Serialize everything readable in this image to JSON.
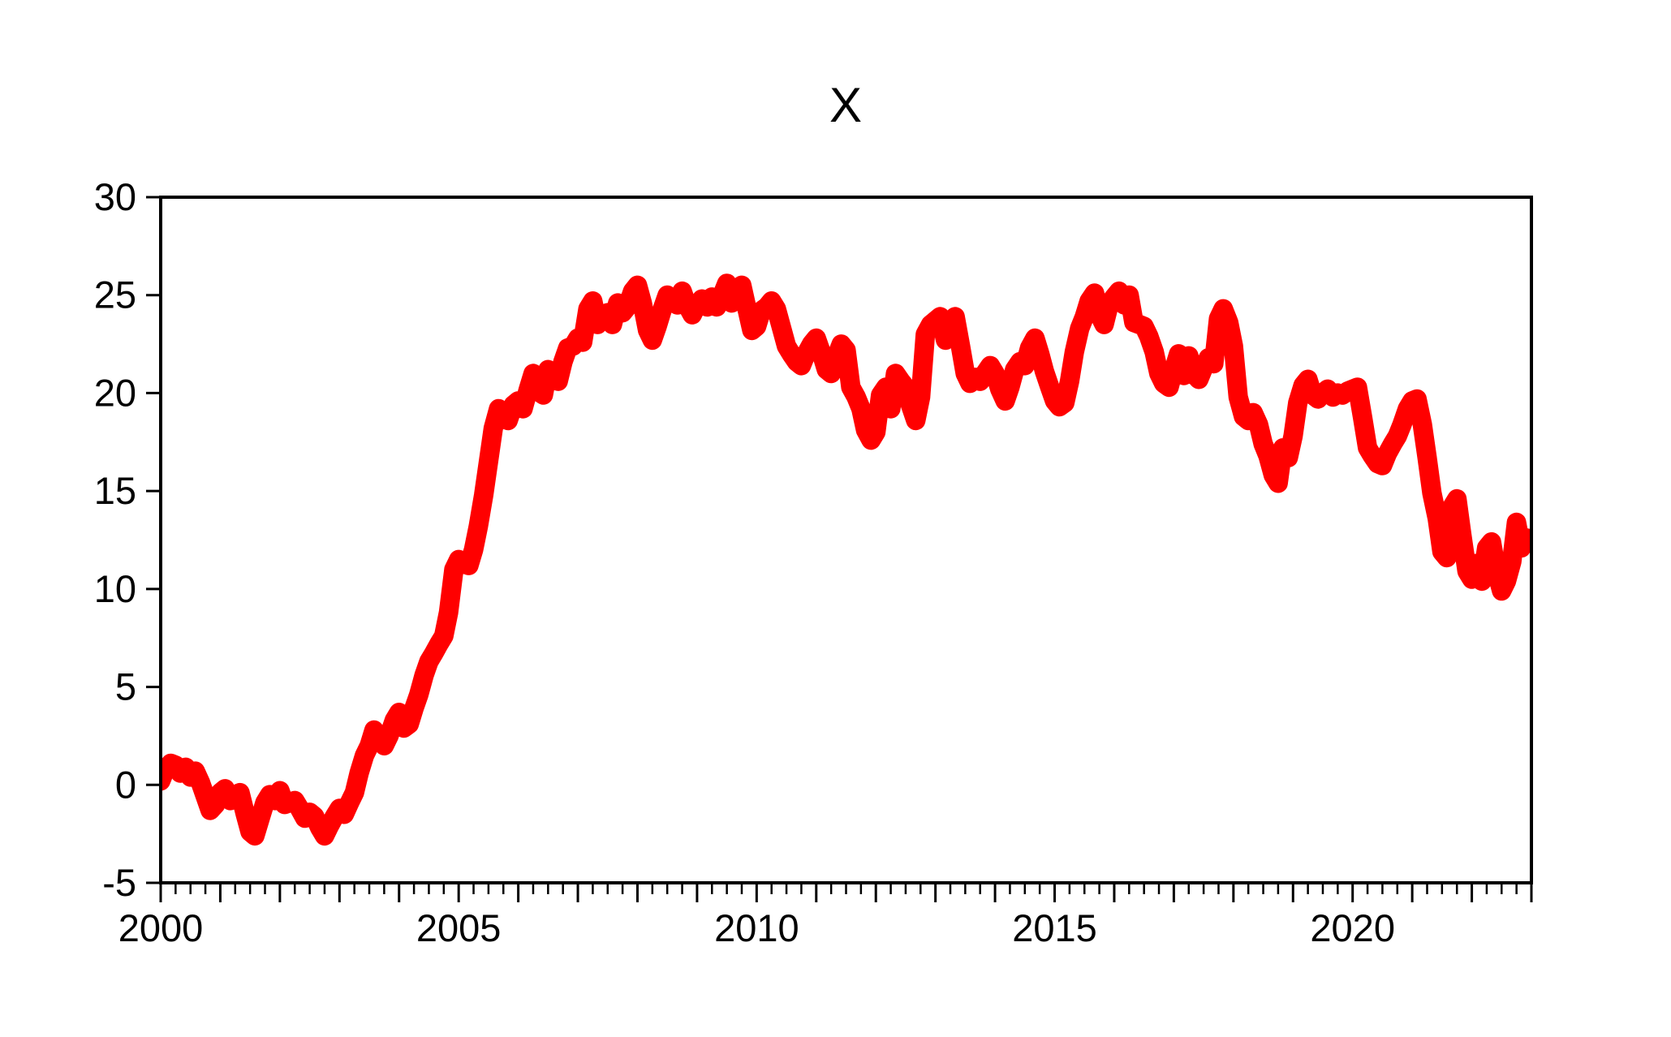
{
  "chart_data": {
    "type": "line",
    "title": "X",
    "series_name": "X",
    "legend": "none",
    "grid": false,
    "background_color": "#ffffff",
    "axis_color": "#000000",
    "line_color": "#ff0000",
    "line_width": 24,
    "x_range": [
      2000,
      2023
    ],
    "y_range": [
      -5,
      30
    ],
    "y_ticks": [
      30,
      25,
      20,
      15,
      10,
      5,
      0,
      -5
    ],
    "x_label_ticks": [
      2000,
      2005,
      2010,
      2015,
      2020
    ],
    "x_major_tick_step": 1,
    "x_minor_tick_step": 0.25,
    "points": [
      [
        2000.0,
        0.2
      ],
      [
        2000.08,
        0.8
      ],
      [
        2000.17,
        1.1
      ],
      [
        2000.25,
        1.0
      ],
      [
        2000.33,
        0.6
      ],
      [
        2000.42,
        0.9
      ],
      [
        2000.5,
        0.4
      ],
      [
        2000.58,
        0.7
      ],
      [
        2000.67,
        0.1
      ],
      [
        2000.75,
        -0.6
      ],
      [
        2000.83,
        -1.3
      ],
      [
        2000.92,
        -1.0
      ],
      [
        2001.0,
        -0.4
      ],
      [
        2001.08,
        -0.2
      ],
      [
        2001.17,
        -0.8
      ],
      [
        2001.25,
        -0.5
      ],
      [
        2001.33,
        -0.4
      ],
      [
        2001.42,
        -1.5
      ],
      [
        2001.5,
        -2.4
      ],
      [
        2001.58,
        -2.6
      ],
      [
        2001.67,
        -1.7
      ],
      [
        2001.75,
        -0.9
      ],
      [
        2001.83,
        -0.5
      ],
      [
        2001.92,
        -0.8
      ],
      [
        2002.0,
        -0.3
      ],
      [
        2002.08,
        -1.0
      ],
      [
        2002.17,
        -0.9
      ],
      [
        2002.25,
        -0.8
      ],
      [
        2002.33,
        -1.2
      ],
      [
        2002.42,
        -1.7
      ],
      [
        2002.5,
        -1.4
      ],
      [
        2002.58,
        -1.6
      ],
      [
        2002.67,
        -2.2
      ],
      [
        2002.75,
        -2.6
      ],
      [
        2002.83,
        -2.1
      ],
      [
        2002.92,
        -1.6
      ],
      [
        2003.0,
        -1.2
      ],
      [
        2003.08,
        -1.5
      ],
      [
        2003.17,
        -0.9
      ],
      [
        2003.25,
        -0.4
      ],
      [
        2003.33,
        0.6
      ],
      [
        2003.42,
        1.5
      ],
      [
        2003.5,
        2.0
      ],
      [
        2003.58,
        2.8
      ],
      [
        2003.67,
        2.4
      ],
      [
        2003.75,
        2.0
      ],
      [
        2003.83,
        2.5
      ],
      [
        2003.92,
        3.3
      ],
      [
        2004.0,
        3.7
      ],
      [
        2004.08,
        2.9
      ],
      [
        2004.17,
        3.1
      ],
      [
        2004.25,
        3.9
      ],
      [
        2004.33,
        4.6
      ],
      [
        2004.42,
        5.6
      ],
      [
        2004.5,
        6.3
      ],
      [
        2004.58,
        6.7
      ],
      [
        2004.67,
        7.2
      ],
      [
        2004.75,
        7.6
      ],
      [
        2004.83,
        8.8
      ],
      [
        2004.92,
        11.0
      ],
      [
        2005.0,
        11.5
      ],
      [
        2005.08,
        11.3
      ],
      [
        2005.17,
        11.2
      ],
      [
        2005.25,
        12.0
      ],
      [
        2005.33,
        13.2
      ],
      [
        2005.42,
        14.8
      ],
      [
        2005.5,
        16.5
      ],
      [
        2005.58,
        18.2
      ],
      [
        2005.67,
        19.2
      ],
      [
        2005.75,
        19.0
      ],
      [
        2005.83,
        18.6
      ],
      [
        2005.92,
        19.4
      ],
      [
        2006.0,
        19.6
      ],
      [
        2006.08,
        19.2
      ],
      [
        2006.17,
        20.2
      ],
      [
        2006.25,
        21.0
      ],
      [
        2006.33,
        20.1
      ],
      [
        2006.42,
        19.9
      ],
      [
        2006.5,
        21.2
      ],
      [
        2006.58,
        20.7
      ],
      [
        2006.67,
        20.6
      ],
      [
        2006.75,
        21.6
      ],
      [
        2006.83,
        22.3
      ],
      [
        2006.92,
        22.4
      ],
      [
        2007.0,
        22.8
      ],
      [
        2007.08,
        22.6
      ],
      [
        2007.17,
        24.3
      ],
      [
        2007.25,
        24.7
      ],
      [
        2007.33,
        23.5
      ],
      [
        2007.42,
        23.8
      ],
      [
        2007.5,
        24.1
      ],
      [
        2007.58,
        23.5
      ],
      [
        2007.67,
        24.6
      ],
      [
        2007.75,
        24.1
      ],
      [
        2007.83,
        24.4
      ],
      [
        2007.92,
        25.2
      ],
      [
        2008.0,
        25.5
      ],
      [
        2008.08,
        24.6
      ],
      [
        2008.17,
        23.2
      ],
      [
        2008.25,
        22.7
      ],
      [
        2008.33,
        23.4
      ],
      [
        2008.42,
        24.3
      ],
      [
        2008.5,
        25.0
      ],
      [
        2008.58,
        24.8
      ],
      [
        2008.67,
        24.5
      ],
      [
        2008.75,
        25.2
      ],
      [
        2008.83,
        24.5
      ],
      [
        2008.92,
        24.0
      ],
      [
        2009.0,
        24.5
      ],
      [
        2009.08,
        24.8
      ],
      [
        2009.17,
        24.4
      ],
      [
        2009.25,
        24.9
      ],
      [
        2009.33,
        24.4
      ],
      [
        2009.42,
        25.0
      ],
      [
        2009.5,
        25.6
      ],
      [
        2009.58,
        24.6
      ],
      [
        2009.67,
        25.2
      ],
      [
        2009.75,
        25.5
      ],
      [
        2009.83,
        24.4
      ],
      [
        2009.92,
        23.2
      ],
      [
        2010.0,
        23.4
      ],
      [
        2010.08,
        24.2
      ],
      [
        2010.17,
        24.4
      ],
      [
        2010.25,
        24.7
      ],
      [
        2010.33,
        24.3
      ],
      [
        2010.42,
        23.3
      ],
      [
        2010.5,
        22.4
      ],
      [
        2010.58,
        22.0
      ],
      [
        2010.67,
        21.6
      ],
      [
        2010.75,
        21.4
      ],
      [
        2010.83,
        22.0
      ],
      [
        2010.92,
        22.5
      ],
      [
        2011.0,
        22.8
      ],
      [
        2011.08,
        22.1
      ],
      [
        2011.17,
        21.2
      ],
      [
        2011.25,
        21.0
      ],
      [
        2011.33,
        21.8
      ],
      [
        2011.42,
        22.5
      ],
      [
        2011.5,
        22.2
      ],
      [
        2011.58,
        20.3
      ],
      [
        2011.67,
        19.8
      ],
      [
        2011.75,
        19.2
      ],
      [
        2011.83,
        18.1
      ],
      [
        2011.92,
        17.6
      ],
      [
        2012.0,
        18.0
      ],
      [
        2012.08,
        19.9
      ],
      [
        2012.17,
        20.3
      ],
      [
        2012.25,
        19.2
      ],
      [
        2012.33,
        21.0
      ],
      [
        2012.42,
        20.6
      ],
      [
        2012.5,
        20.3
      ],
      [
        2012.58,
        19.4
      ],
      [
        2012.67,
        18.6
      ],
      [
        2012.75,
        19.8
      ],
      [
        2012.83,
        23.0
      ],
      [
        2012.92,
        23.5
      ],
      [
        2013.0,
        23.7
      ],
      [
        2013.08,
        23.9
      ],
      [
        2013.17,
        22.7
      ],
      [
        2013.25,
        23.6
      ],
      [
        2013.33,
        23.9
      ],
      [
        2013.42,
        22.4
      ],
      [
        2013.5,
        21.0
      ],
      [
        2013.58,
        20.5
      ],
      [
        2013.67,
        20.8
      ],
      [
        2013.75,
        20.6
      ],
      [
        2013.83,
        21.0
      ],
      [
        2013.92,
        21.4
      ],
      [
        2014.0,
        21.0
      ],
      [
        2014.08,
        20.2
      ],
      [
        2014.17,
        19.6
      ],
      [
        2014.25,
        20.3
      ],
      [
        2014.33,
        21.2
      ],
      [
        2014.42,
        21.6
      ],
      [
        2014.5,
        21.4
      ],
      [
        2014.58,
        22.3
      ],
      [
        2014.67,
        22.8
      ],
      [
        2014.75,
        22.0
      ],
      [
        2014.83,
        21.1
      ],
      [
        2014.92,
        20.3
      ],
      [
        2015.0,
        19.6
      ],
      [
        2015.08,
        19.3
      ],
      [
        2015.17,
        19.5
      ],
      [
        2015.25,
        20.6
      ],
      [
        2015.33,
        22.1
      ],
      [
        2015.42,
        23.3
      ],
      [
        2015.5,
        23.9
      ],
      [
        2015.58,
        24.7
      ],
      [
        2015.67,
        25.1
      ],
      [
        2015.75,
        24.0
      ],
      [
        2015.83,
        23.5
      ],
      [
        2015.92,
        24.6
      ],
      [
        2016.0,
        24.9
      ],
      [
        2016.08,
        25.2
      ],
      [
        2016.17,
        24.5
      ],
      [
        2016.25,
        25.0
      ],
      [
        2016.33,
        23.6
      ],
      [
        2016.42,
        23.5
      ],
      [
        2016.5,
        23.4
      ],
      [
        2016.58,
        22.9
      ],
      [
        2016.67,
        22.1
      ],
      [
        2016.75,
        21.0
      ],
      [
        2016.83,
        20.5
      ],
      [
        2016.92,
        20.3
      ],
      [
        2017.0,
        21.2
      ],
      [
        2017.08,
        22.0
      ],
      [
        2017.17,
        20.9
      ],
      [
        2017.25,
        21.9
      ],
      [
        2017.33,
        21.0
      ],
      [
        2017.42,
        20.7
      ],
      [
        2017.5,
        21.3
      ],
      [
        2017.58,
        21.8
      ],
      [
        2017.67,
        21.5
      ],
      [
        2017.75,
        23.8
      ],
      [
        2017.83,
        24.3
      ],
      [
        2017.92,
        23.6
      ],
      [
        2018.0,
        22.4
      ],
      [
        2018.08,
        19.8
      ],
      [
        2018.17,
        18.8
      ],
      [
        2018.25,
        18.6
      ],
      [
        2018.33,
        19.0
      ],
      [
        2018.42,
        18.4
      ],
      [
        2018.5,
        17.4
      ],
      [
        2018.58,
        16.8
      ],
      [
        2018.67,
        15.8
      ],
      [
        2018.75,
        15.4
      ],
      [
        2018.83,
        17.2
      ],
      [
        2018.92,
        16.7
      ],
      [
        2019.0,
        17.8
      ],
      [
        2019.08,
        19.5
      ],
      [
        2019.17,
        20.4
      ],
      [
        2019.25,
        20.7
      ],
      [
        2019.33,
        19.9
      ],
      [
        2019.42,
        19.7
      ],
      [
        2019.5,
        20.0
      ],
      [
        2019.58,
        20.2
      ],
      [
        2019.67,
        19.8
      ],
      [
        2019.75,
        20.0
      ],
      [
        2019.83,
        19.9
      ],
      [
        2019.92,
        20.1
      ],
      [
        2020.0,
        20.2
      ],
      [
        2020.08,
        20.3
      ],
      [
        2020.17,
        18.7
      ],
      [
        2020.25,
        17.2
      ],
      [
        2020.33,
        16.8
      ],
      [
        2020.42,
        16.4
      ],
      [
        2020.5,
        16.3
      ],
      [
        2020.58,
        16.9
      ],
      [
        2020.67,
        17.4
      ],
      [
        2020.75,
        17.8
      ],
      [
        2020.83,
        18.4
      ],
      [
        2020.92,
        19.2
      ],
      [
        2021.0,
        19.6
      ],
      [
        2021.08,
        19.7
      ],
      [
        2021.17,
        18.4
      ],
      [
        2021.25,
        16.7
      ],
      [
        2021.33,
        14.9
      ],
      [
        2021.42,
        13.6
      ],
      [
        2021.5,
        11.9
      ],
      [
        2021.58,
        11.6
      ],
      [
        2021.67,
        14.2
      ],
      [
        2021.75,
        14.6
      ],
      [
        2021.83,
        12.8
      ],
      [
        2021.92,
        10.9
      ],
      [
        2022.0,
        10.5
      ],
      [
        2022.08,
        11.3
      ],
      [
        2022.17,
        10.4
      ],
      [
        2022.25,
        12.1
      ],
      [
        2022.33,
        12.4
      ],
      [
        2022.42,
        10.8
      ],
      [
        2022.5,
        9.9
      ],
      [
        2022.58,
        10.4
      ],
      [
        2022.67,
        11.4
      ],
      [
        2022.75,
        13.4
      ],
      [
        2022.83,
        12.1
      ],
      [
        2022.92,
        12.6
      ]
    ]
  }
}
